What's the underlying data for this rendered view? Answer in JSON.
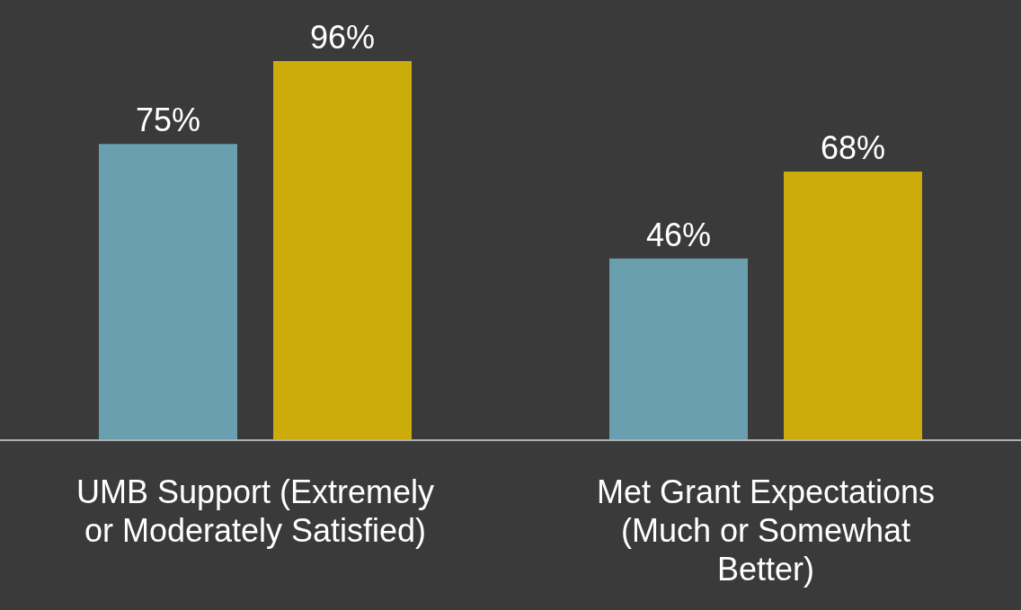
{
  "chart_data": {
    "type": "bar",
    "categories": [
      "UMB Support (Extremely or Moderately Satisfied)",
      "Met Grant Expectations (Much or Somewhat Better)"
    ],
    "series": [
      {
        "color": "#6a9fb0",
        "values": [
          75,
          46
        ],
        "value_labels": [
          "75%",
          "46%"
        ]
      },
      {
        "color": "#ccac0b",
        "values": [
          96,
          68
        ],
        "value_labels": [
          "96%",
          "68%"
        ]
      }
    ],
    "grid": false,
    "legend": false
  }
}
